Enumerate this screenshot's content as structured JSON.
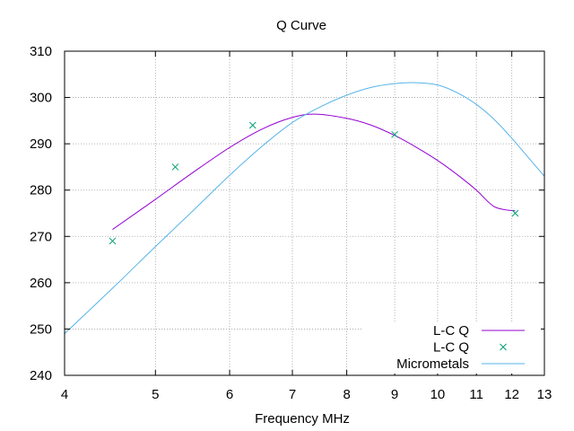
{
  "chart_data": {
    "type": "line",
    "title": "Q Curve",
    "xlabel": "Frequency MHz",
    "ylabel": "",
    "x_scale": "log",
    "xlim": [
      4,
      13
    ],
    "ylim": [
      240,
      310
    ],
    "xticks": [
      4,
      5,
      6,
      7,
      8,
      9,
      10,
      11,
      12,
      13
    ],
    "yticks": [
      240,
      250,
      260,
      270,
      280,
      290,
      300,
      310
    ],
    "grid": true,
    "legend_position": "bottom-right",
    "series": [
      {
        "name": "L-C Q",
        "kind": "line",
        "color": "#9400d3",
        "x": [
          4.5,
          5.0,
          5.5,
          6.0,
          6.5,
          7.0,
          7.4,
          8.0,
          8.5,
          9.0,
          9.5,
          10.0,
          10.5,
          11.0,
          11.5,
          12.1
        ],
        "y": [
          271.5,
          278.0,
          284.0,
          289.2,
          293.2,
          295.7,
          296.4,
          295.5,
          294.0,
          291.8,
          289.2,
          286.4,
          283.3,
          280.0,
          276.4,
          275.5
        ]
      },
      {
        "name": "L-C Q",
        "kind": "points",
        "color": "#009e73",
        "x": [
          4.5,
          5.25,
          6.35,
          9.0,
          12.1
        ],
        "y": [
          269,
          285,
          294,
          292,
          275
        ]
      },
      {
        "name": "Micrometals",
        "kind": "line",
        "color": "#56b4e9",
        "x": [
          4.0,
          4.5,
          5.0,
          5.5,
          6.0,
          6.5,
          7.0,
          7.5,
          8.0,
          8.5,
          9.0,
          9.5,
          10.0,
          10.5,
          11.0,
          11.5,
          12.0,
          12.5,
          13.0
        ],
        "y": [
          249.0,
          258.8,
          267.8,
          275.8,
          283.2,
          289.5,
          294.6,
          298.0,
          300.5,
          302.2,
          303.0,
          303.2,
          302.7,
          301.0,
          298.5,
          295.2,
          291.2,
          287.0,
          283.0
        ]
      }
    ]
  }
}
